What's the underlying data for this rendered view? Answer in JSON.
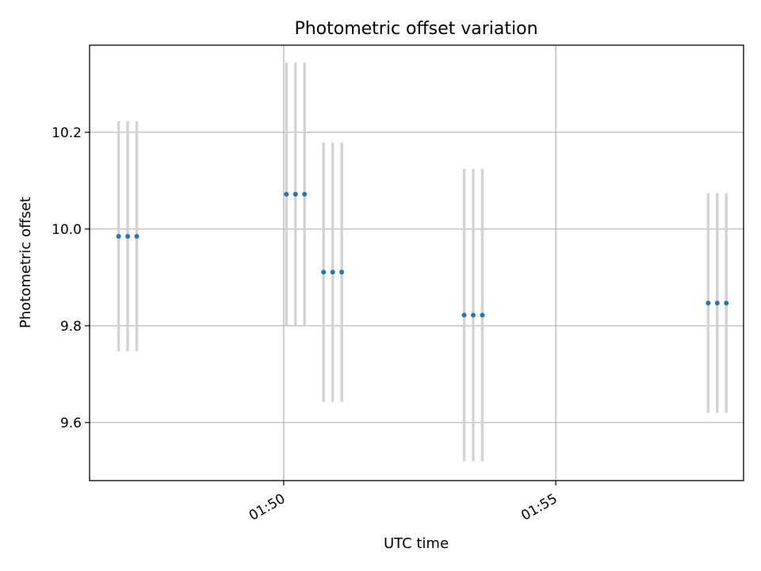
{
  "chart_data": {
    "type": "scatter",
    "title": "Photometric offset variation",
    "xlabel": "UTC time",
    "ylabel": "Photometric offset",
    "x_axis_type": "time",
    "xlim": [
      "01:46:26",
      "01:58:27"
    ],
    "ylim": [
      9.48,
      10.38
    ],
    "x_ticks": [
      {
        "value": "01:50:00",
        "label": "01:50"
      },
      {
        "value": "01:55:00",
        "label": "01:55"
      }
    ],
    "y_ticks": [
      {
        "value": 9.6,
        "label": "9.6"
      },
      {
        "value": 9.8,
        "label": "9.8"
      },
      {
        "value": 10.0,
        "label": "10.0"
      },
      {
        "value": 10.2,
        "label": "10.2"
      }
    ],
    "grid": true,
    "marker_color": "#1f77b4",
    "errorbar_color": "#d3d3d3",
    "points": [
      {
        "t": "01:46:58",
        "y": 9.985,
        "err": 0.238
      },
      {
        "t": "01:47:08",
        "y": 9.985,
        "err": 0.238
      },
      {
        "t": "01:47:18",
        "y": 9.985,
        "err": 0.238
      },
      {
        "t": "01:50:03",
        "y": 10.072,
        "err": 0.272
      },
      {
        "t": "01:50:13",
        "y": 10.072,
        "err": 0.272
      },
      {
        "t": "01:50:23",
        "y": 10.072,
        "err": 0.272
      },
      {
        "t": "01:50:44",
        "y": 9.911,
        "err": 0.268
      },
      {
        "t": "01:50:54",
        "y": 9.911,
        "err": 0.268
      },
      {
        "t": "01:51:04",
        "y": 9.911,
        "err": 0.268
      },
      {
        "t": "01:53:19",
        "y": 9.822,
        "err": 0.302
      },
      {
        "t": "01:53:29",
        "y": 9.822,
        "err": 0.302
      },
      {
        "t": "01:53:39",
        "y": 9.822,
        "err": 0.302
      },
      {
        "t": "01:57:48",
        "y": 9.847,
        "err": 0.227
      },
      {
        "t": "01:57:58",
        "y": 9.847,
        "err": 0.227
      },
      {
        "t": "01:58:08",
        "y": 9.847,
        "err": 0.227
      }
    ]
  }
}
